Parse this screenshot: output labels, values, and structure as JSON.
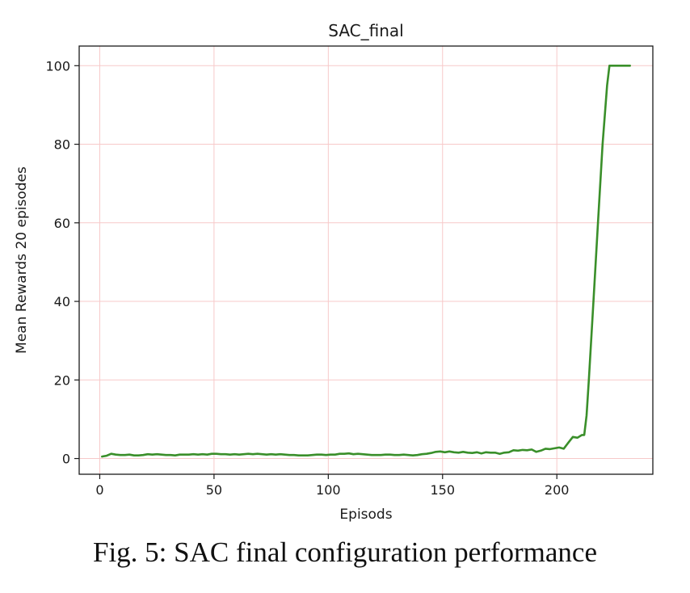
{
  "caption": "Fig. 5: SAC final configuration performance",
  "chart_data": {
    "type": "line",
    "title": "SAC_final",
    "xlabel": "Episods",
    "ylabel": "Mean Rewards 20 episodes",
    "xlim": [
      -9,
      242
    ],
    "ylim": [
      -4,
      105
    ],
    "xticks": [
      0,
      50,
      100,
      150,
      200
    ],
    "yticks": [
      0,
      20,
      40,
      60,
      80,
      100
    ],
    "grid": true,
    "grid_color": "#f7c9c9",
    "line_color": "#3a8f2a",
    "series": [
      {
        "x": [
          1,
          3,
          5,
          7,
          9,
          11,
          13,
          15,
          17,
          19,
          21,
          23,
          25,
          27,
          29,
          31,
          33,
          35,
          37,
          39,
          41,
          43,
          45,
          47,
          49,
          51,
          53,
          55,
          57,
          59,
          61,
          63,
          65,
          67,
          69,
          71,
          73,
          75,
          77,
          79,
          81,
          83,
          85,
          87,
          89,
          91,
          93,
          95,
          97,
          99,
          101,
          103,
          105,
          107,
          109,
          111,
          113,
          115,
          117,
          119,
          121,
          123,
          125,
          127,
          129,
          131,
          133,
          135,
          137,
          139,
          141,
          143,
          145,
          147,
          149,
          151,
          153,
          155,
          157,
          159,
          161,
          163,
          165,
          167,
          169,
          171,
          173,
          175,
          177,
          179,
          181,
          183,
          185,
          187,
          189,
          191,
          193,
          195,
          197,
          199,
          201,
          203,
          205,
          207,
          209,
          211,
          212,
          213,
          214,
          216,
          218,
          220,
          222,
          223,
          224,
          226,
          228,
          230,
          232
        ],
        "y": [
          0.5,
          0.7,
          1.2,
          1.0,
          0.9,
          0.9,
          1.0,
          0.8,
          0.8,
          0.9,
          1.1,
          1.0,
          1.1,
          1.0,
          0.9,
          0.9,
          0.8,
          1.0,
          1.0,
          1.0,
          1.1,
          1.0,
          1.1,
          1.0,
          1.2,
          1.2,
          1.1,
          1.1,
          1.0,
          1.1,
          1.0,
          1.1,
          1.2,
          1.1,
          1.2,
          1.1,
          1.0,
          1.1,
          1.0,
          1.1,
          1.0,
          0.9,
          0.9,
          0.8,
          0.8,
          0.8,
          0.9,
          1.0,
          1.0,
          0.9,
          1.0,
          1.0,
          1.2,
          1.2,
          1.3,
          1.1,
          1.2,
          1.1,
          1.0,
          0.9,
          0.9,
          0.9,
          1.0,
          1.0,
          0.9,
          0.9,
          1.0,
          0.9,
          0.8,
          0.9,
          1.1,
          1.2,
          1.4,
          1.7,
          1.8,
          1.6,
          1.8,
          1.6,
          1.5,
          1.7,
          1.5,
          1.4,
          1.6,
          1.3,
          1.6,
          1.5,
          1.5,
          1.2,
          1.5,
          1.6,
          2.1,
          2.0,
          2.2,
          2.1,
          2.3,
          1.7,
          2.0,
          2.5,
          2.4,
          2.6,
          2.8,
          2.5,
          4.0,
          5.5,
          5.3,
          6.0,
          6.0,
          11,
          20,
          40,
          60,
          80,
          95,
          100,
          100,
          100,
          100,
          100,
          100
        ]
      }
    ]
  }
}
